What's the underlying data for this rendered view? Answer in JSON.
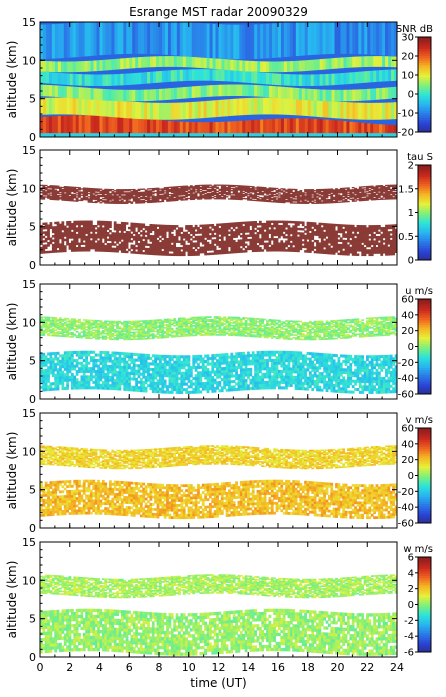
{
  "chart_data": [
    {
      "type": "heatmap",
      "title": "Esrange MST radar 20090329",
      "xlabel": "",
      "ylabel": "altitude (km)",
      "xlim": [
        0,
        24
      ],
      "ylim": [
        0,
        15
      ],
      "x_ticks": [
        "0",
        "2",
        "4",
        "6",
        "8",
        "10",
        "12",
        "14",
        "16",
        "18",
        "20",
        "22",
        "24"
      ],
      "y_ticks": [
        "0",
        "5",
        "10",
        "15"
      ],
      "colorbar": {
        "label": "SNR dB",
        "range": [
          -20,
          30
        ],
        "ticks": [
          "30",
          "20",
          "10",
          "0",
          "-10",
          "-20"
        ]
      },
      "layers": [
        {
          "alt_range": [
            0.2,
            2.6
          ],
          "value": 22
        },
        {
          "alt_range": [
            2.6,
            4.8
          ],
          "value": 10
        },
        {
          "alt_range": [
            5.0,
            6.5
          ],
          "value": 5
        },
        {
          "alt_range": [
            7.0,
            8.5
          ],
          "value": 0
        },
        {
          "alt_range": [
            8.8,
            10.2
          ],
          "value": 6
        },
        {
          "alt_range": [
            10.5,
            15
          ],
          "value": -8
        }
      ]
    },
    {
      "type": "heatmap",
      "xlabel": "",
      "ylabel": "altitude (km)",
      "xlim": [
        0,
        24
      ],
      "ylim": [
        0,
        15
      ],
      "x_ticks": [
        "0",
        "2",
        "4",
        "6",
        "8",
        "10",
        "12",
        "14",
        "16",
        "18",
        "20",
        "22",
        "24"
      ],
      "y_ticks": [
        "0",
        "5",
        "10",
        "15"
      ],
      "colorbar": {
        "label": "tau S",
        "range": [
          0,
          2
        ],
        "ticks": [
          "2",
          "1.5",
          "1",
          "0.5",
          "0"
        ]
      },
      "layers": [
        {
          "alt_range": [
            1.5,
            5.5
          ],
          "value": 2
        },
        {
          "alt_range": [
            8.3,
            10.2
          ],
          "value": 2
        }
      ]
    },
    {
      "type": "heatmap",
      "xlabel": "",
      "ylabel": "altitude (km)",
      "xlim": [
        0,
        24
      ],
      "ylim": [
        0,
        15
      ],
      "x_ticks": [
        "0",
        "2",
        "4",
        "6",
        "8",
        "10",
        "12",
        "14",
        "16",
        "18",
        "20",
        "22",
        "24"
      ],
      "y_ticks": [
        "0",
        "5",
        "10",
        "15"
      ],
      "colorbar": {
        "label": "u m/s",
        "range": [
          -60,
          60
        ],
        "ticks": [
          "60",
          "40",
          "20",
          "0",
          "-20",
          "-40",
          "-60"
        ]
      },
      "layers": [
        {
          "alt_range": [
            1.0,
            6.0
          ],
          "value": -15
        },
        {
          "alt_range": [
            8.0,
            10.5
          ],
          "value": 2
        }
      ]
    },
    {
      "type": "heatmap",
      "xlabel": "",
      "ylabel": "altitude (km)",
      "xlim": [
        0,
        24
      ],
      "ylim": [
        0,
        15
      ],
      "x_ticks": [
        "0",
        "2",
        "4",
        "6",
        "8",
        "10",
        "12",
        "14",
        "16",
        "18",
        "20",
        "22",
        "24"
      ],
      "y_ticks": [
        "0",
        "5",
        "10",
        "15"
      ],
      "colorbar": {
        "label": "v m/s",
        "range": [
          -60,
          60
        ],
        "ticks": [
          "60",
          "40",
          "20",
          "0",
          "-20",
          "-40",
          "-60"
        ]
      },
      "layers": [
        {
          "alt_range": [
            1.5,
            6.0
          ],
          "value": 22
        },
        {
          "alt_range": [
            8.0,
            10.5
          ],
          "value": 18
        }
      ]
    },
    {
      "type": "heatmap",
      "xlabel": "time (UT)",
      "ylabel": "altitude (km)",
      "xlim": [
        0,
        24
      ],
      "ylim": [
        0,
        15
      ],
      "x_ticks": [
        "0",
        "2",
        "4",
        "6",
        "8",
        "10",
        "12",
        "14",
        "16",
        "18",
        "20",
        "22",
        "24"
      ],
      "y_ticks": [
        "0",
        "5",
        "10",
        "15"
      ],
      "colorbar": {
        "label": "w m/s",
        "range": [
          -6,
          6
        ],
        "ticks": [
          "6",
          "4",
          "2",
          "0",
          "-2",
          "-4",
          "-6"
        ]
      },
      "layers": [
        {
          "alt_range": [
            0.5,
            6.0
          ],
          "value": 0.3
        },
        {
          "alt_range": [
            8.0,
            10.5
          ],
          "value": 0.5
        }
      ]
    }
  ],
  "colors": {
    "colormap": [
      "#2b2d8c",
      "#2a44d6",
      "#2a7be8",
      "#27b6f0",
      "#2ee3d8",
      "#7ff07a",
      "#e6f03a",
      "#f5b623",
      "#ef6120",
      "#c8281e",
      "#8c1e1e"
    ],
    "tau_mark": "#8a3b36"
  }
}
